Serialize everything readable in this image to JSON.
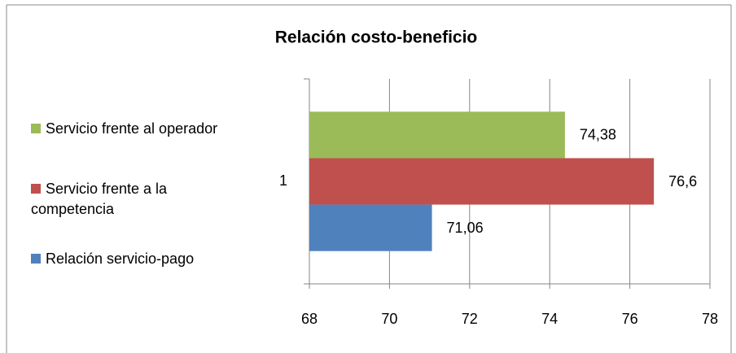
{
  "chart_data": {
    "type": "hbar",
    "title": "Relación costo-beneficio",
    "categories": [
      "1"
    ],
    "series": [
      {
        "name": "Servicio frente al operador",
        "color": "#9bbb59",
        "values": [
          74.38
        ],
        "value_labels": [
          "74,38"
        ]
      },
      {
        "name": "Servicio frente a la competencia",
        "color": "#c0504d",
        "values": [
          76.6
        ],
        "value_labels": [
          "76,6"
        ]
      },
      {
        "name": "Relación servicio-pago",
        "color": "#4f81bd",
        "values": [
          71.06
        ],
        "value_labels": [
          "71,06"
        ]
      }
    ],
    "xlim": [
      68,
      78
    ],
    "xticks": [
      68,
      70,
      72,
      74,
      76,
      78
    ],
    "grid": true,
    "legend": "left"
  }
}
